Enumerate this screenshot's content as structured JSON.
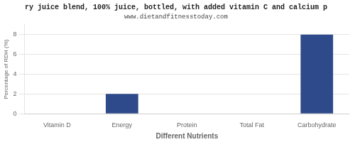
{
  "chart_data": {
    "type": "bar",
    "title": "ry juice blend, 100% juice, bottled, with added vitamin C and calcium p",
    "subtitle": "www.dietandfitnesstoday.com",
    "categories": [
      "Vitamin D",
      "Energy",
      "Protein",
      "Total Fat",
      "Carbohydrate"
    ],
    "values": [
      0,
      2,
      0,
      0,
      8
    ],
    "color": "#2e4a8a",
    "xlabel": "Different Nutrients",
    "ylabel": "Percentage of RDH (%)",
    "ylim": [
      0,
      9
    ],
    "yticks": [
      0,
      2,
      4,
      6,
      8
    ],
    "grid": true
  }
}
